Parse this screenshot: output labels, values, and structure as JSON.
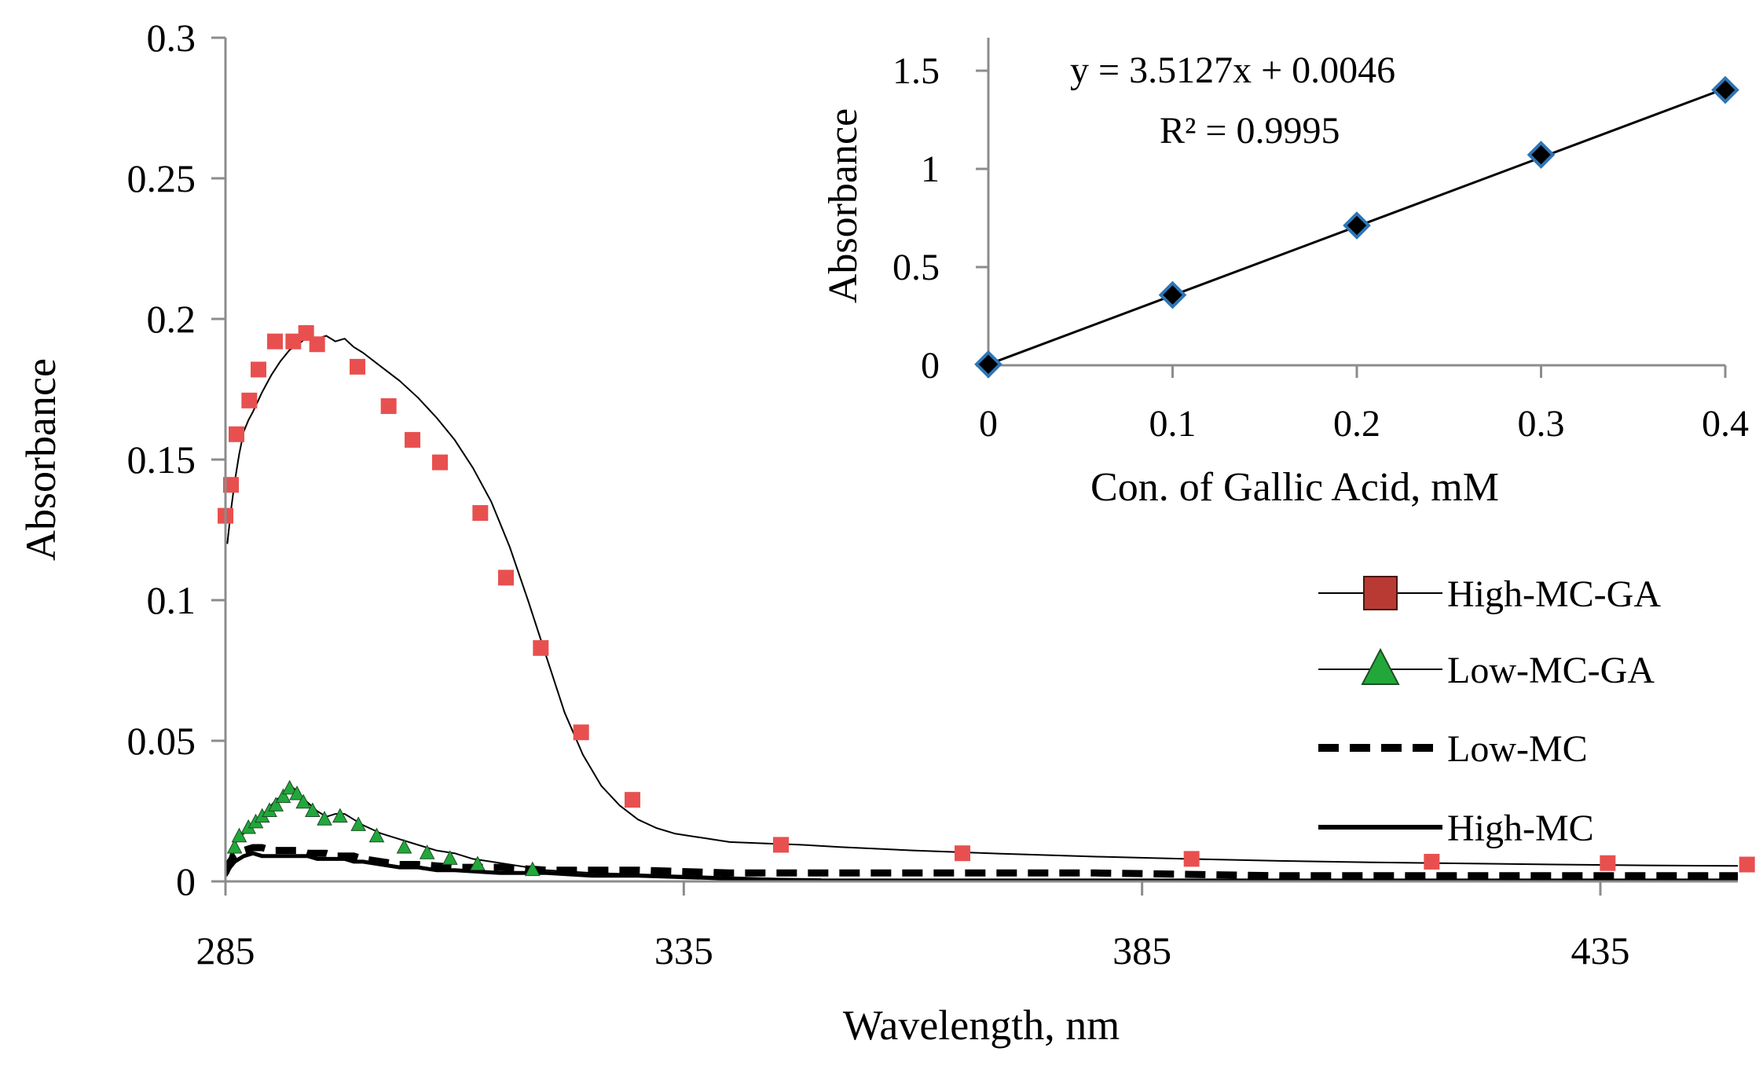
{
  "chart_data": [
    {
      "type": "line",
      "xlabel": "Wavelength, nm",
      "ylabel": "Absorbance",
      "xlim": [
        285,
        450
      ],
      "ylim": [
        0,
        0.3
      ],
      "xticks": [
        285,
        335,
        385,
        435
      ],
      "xtick_labels": [
        "285",
        "335",
        "385",
        "435"
      ],
      "yticks": [
        0,
        0.05,
        0.1,
        0.15,
        0.2,
        0.25,
        0.3
      ],
      "ytick_labels": [
        "0",
        "0.05",
        "0.1",
        "0.15",
        "0.2",
        "0.25",
        "0.3"
      ],
      "legend_position": "right",
      "series": [
        {
          "name": "High-MC-GA",
          "color": "#e8504f",
          "marker": "square",
          "legend_marker_color": "#b83a33",
          "line": "thin",
          "curve_x": [
            285.2,
            285.6,
            286,
            286.5,
            287,
            287.5,
            288,
            289,
            290,
            291,
            292,
            293,
            294,
            295,
            296,
            297,
            298,
            299,
            300,
            302,
            304,
            306,
            308,
            310,
            312,
            314,
            316,
            318,
            320,
            322,
            324,
            326,
            328,
            330,
            332,
            334,
            336,
            338,
            340,
            344,
            348,
            352,
            360,
            370,
            380,
            390,
            400,
            410,
            420,
            430,
            440,
            450
          ],
          "curve_y": [
            0.12,
            0.132,
            0.142,
            0.152,
            0.16,
            0.164,
            0.167,
            0.174,
            0.18,
            0.185,
            0.189,
            0.191,
            0.194,
            0.193,
            0.194,
            0.192,
            0.193,
            0.19,
            0.188,
            0.183,
            0.178,
            0.172,
            0.165,
            0.157,
            0.147,
            0.135,
            0.119,
            0.1,
            0.08,
            0.06,
            0.045,
            0.034,
            0.027,
            0.022,
            0.019,
            0.017,
            0.016,
            0.015,
            0.014,
            0.0135,
            0.013,
            0.0122,
            0.011,
            0.0098,
            0.0088,
            0.008,
            0.0073,
            0.0068,
            0.0064,
            0.006,
            0.0057,
            0.0055
          ],
          "marker_x": [
            285,
            285.6,
            286.2,
            287.6,
            288.6,
            290.4,
            292.4,
            293.8,
            295,
            299.4,
            302.8,
            305.4,
            308.4,
            312.8,
            315.6,
            319.4,
            323.8,
            329.4,
            345.6,
            365.4,
            390.4,
            416.6,
            435.8,
            451
          ],
          "marker_y": [
            0.13,
            0.141,
            0.159,
            0.171,
            0.182,
            0.192,
            0.192,
            0.195,
            0.191,
            0.183,
            0.169,
            0.157,
            0.149,
            0.131,
            0.108,
            0.083,
            0.053,
            0.029,
            0.013,
            0.01,
            0.008,
            0.007,
            0.0065,
            0.006
          ]
        },
        {
          "name": "Low-MC-GA",
          "color": "#22a83a",
          "marker": "triangle",
          "legend_marker_color": "#22a83a",
          "line": "thin",
          "curve_x": [
            285,
            285.5,
            286,
            286.5,
            287,
            287.5,
            288,
            288.5,
            289,
            289.5,
            290,
            290.5,
            291,
            291.5,
            292,
            292.5,
            293,
            294,
            295,
            296,
            297,
            298,
            299,
            300,
            302,
            304,
            306,
            308,
            310,
            312,
            314,
            316,
            318,
            320,
            325,
            330,
            335,
            340,
            345,
            350
          ],
          "curve_y": [
            0.004,
            0.009,
            0.013,
            0.016,
            0.017,
            0.019,
            0.021,
            0.022,
            0.024,
            0.025,
            0.027,
            0.029,
            0.03,
            0.032,
            0.034,
            0.033,
            0.031,
            0.028,
            0.025,
            0.023,
            0.024,
            0.024,
            0.022,
            0.02,
            0.017,
            0.015,
            0.013,
            0.011,
            0.01,
            0.008,
            0.007,
            0.006,
            0.005,
            0.004,
            0.003,
            0.0025,
            0.002,
            0.0015,
            0.001,
            0.0008
          ],
          "marker_x": [
            286,
            286.5,
            287.5,
            288.3,
            289,
            289.8,
            290.5,
            291.3,
            292,
            292.8,
            293.5,
            294.5,
            295.8,
            297.5,
            299.5,
            301.5,
            304.5,
            307,
            309.5,
            312.5,
            318.5
          ],
          "marker_y": [
            0.012,
            0.016,
            0.019,
            0.021,
            0.023,
            0.025,
            0.027,
            0.03,
            0.033,
            0.031,
            0.028,
            0.025,
            0.022,
            0.023,
            0.02,
            0.016,
            0.012,
            0.01,
            0.008,
            0.006,
            0.004
          ]
        },
        {
          "name": "Low-MC",
          "color": "#000000",
          "marker": "none",
          "line": "dashed",
          "curve_x": [
            285,
            285.5,
            286,
            287,
            288,
            289,
            290,
            291,
            292,
            293,
            294,
            295,
            296,
            297,
            298,
            299,
            300,
            302,
            304,
            306,
            310,
            315,
            320,
            330,
            340,
            350,
            360,
            380,
            400,
            420,
            450
          ],
          "curve_y": [
            0.003,
            0.007,
            0.009,
            0.011,
            0.012,
            0.012,
            0.011,
            0.011,
            0.011,
            0.011,
            0.01,
            0.01,
            0.01,
            0.009,
            0.009,
            0.009,
            0.008,
            0.007,
            0.006,
            0.006,
            0.005,
            0.005,
            0.004,
            0.004,
            0.003,
            0.003,
            0.003,
            0.003,
            0.002,
            0.002,
            0.002
          ]
        },
        {
          "name": "High-MC",
          "color": "#000000",
          "marker": "none",
          "line": "solid-thick",
          "curve_x": [
            285,
            285.5,
            286,
            287,
            288,
            289,
            290,
            291,
            292,
            293,
            294,
            295,
            296,
            297,
            298,
            299,
            300,
            302,
            304,
            306,
            308,
            310,
            315,
            320,
            325,
            330,
            335,
            340,
            345,
            350,
            360,
            380,
            400,
            420,
            450
          ],
          "curve_y": [
            0.002,
            0.005,
            0.007,
            0.009,
            0.01,
            0.009,
            0.009,
            0.009,
            0.009,
            0.009,
            0.009,
            0.008,
            0.008,
            0.008,
            0.008,
            0.007,
            0.007,
            0.006,
            0.005,
            0.005,
            0.004,
            0.004,
            0.003,
            0.003,
            0.002,
            0.002,
            0.0015,
            0.001,
            0.0005,
            0.0003,
            0.0003,
            0.0003,
            0.0003,
            0.0003,
            0.0003
          ]
        }
      ]
    },
    {
      "type": "scatter",
      "xlabel": "Con. of Gallic Acid, mM",
      "ylabel": "Absorbance",
      "xlim": [
        0,
        0.4
      ],
      "ylim": [
        0,
        1.5
      ],
      "xticks": [
        0,
        0.1,
        0.2,
        0.3,
        0.4
      ],
      "xtick_labels": [
        "0",
        "0.1",
        "0.2",
        "0.3",
        "0.4"
      ],
      "yticks": [
        0,
        0.5,
        1,
        1.5
      ],
      "ytick_labels": [
        "0",
        "0.5",
        "1",
        "1.5"
      ],
      "x": [
        0,
        0.1,
        0.2,
        0.3,
        0.4
      ],
      "y": [
        0.005,
        0.358,
        0.712,
        1.072,
        1.402
      ],
      "marker": "diamond",
      "marker_fill": "#000000",
      "marker_edge": "#2e75b6",
      "trendline": {
        "slope": 3.5127,
        "intercept": 0.0046
      },
      "equation": "y = 3.5127x + 0.0046",
      "r_squared": "R² = 0.9995"
    }
  ]
}
